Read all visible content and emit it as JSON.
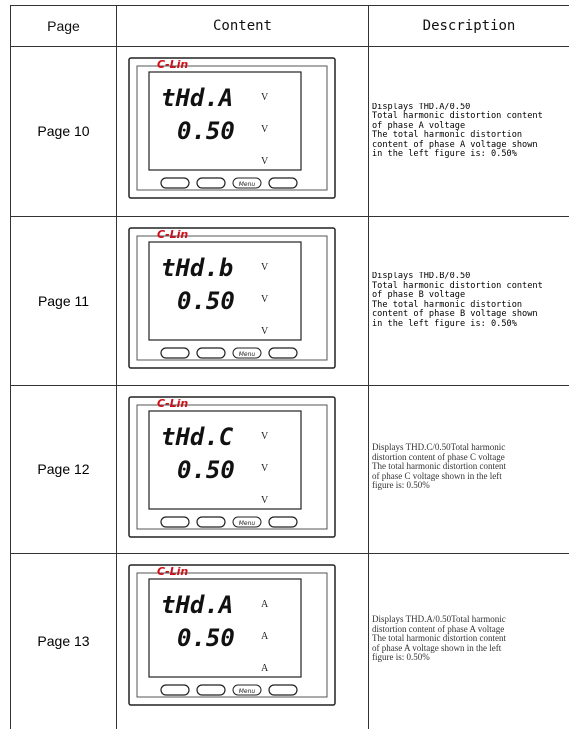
{
  "header": {
    "page": "Page",
    "content": "Content",
    "description": "Description"
  },
  "rows": [
    {
      "page": "Page 10",
      "device": {
        "brand": "C-Lin",
        "line1": "tHd.A",
        "line2": "0.50",
        "units": [
          "V",
          "V",
          "V"
        ],
        "menu": "Menu"
      },
      "description": [
        "Displays THD.A/0.50",
        "Total harmonic distortion content",
        "of phase A voltage",
        "The total  harmonic  distortion",
        "content of phase A voltage shown",
        "in the left figure is: 0.50%"
      ]
    },
    {
      "page": "Page 11",
      "device": {
        "brand": "C-Lin",
        "line1": "tHd.b",
        "line2": "0.50",
        "units": [
          "V",
          "V",
          "V"
        ],
        "menu": "Menu"
      },
      "description": [
        "Displays THD.B/0.50",
        "Total harmonic distortion content",
        "of phase B voltage",
        "The total  harmonic  distortion",
        "content of phase B voltage shown",
        "in the left figure is: 0.50%"
      ]
    },
    {
      "page": "Page 12",
      "device": {
        "brand": "C-Lin",
        "line1": "tHd.C",
        "line2": "0.50",
        "units": [
          "V",
          "V",
          "V"
        ],
        "menu": "Menu"
      },
      "description": [
        "Displays THD.C/0.50Total harmonic",
        "distortion content of phase C voltage",
        "The total harmonic distortion content",
        "of phase C voltage shown in the left",
        "figure is: 0.50%"
      ]
    },
    {
      "page": "Page 13",
      "device": {
        "brand": "C-Lin",
        "line1": "tHd.A",
        "line2": "0.50",
        "units": [
          "A",
          "A",
          "A"
        ],
        "menu": "Menu"
      },
      "description": [
        "Displays THD.A/0.50Total harmonic",
        "distortion content of phase A voltage",
        "The total harmonic distortion content",
        "of phase A voltage shown in the left",
        "figure is: 0.50%"
      ]
    }
  ]
}
